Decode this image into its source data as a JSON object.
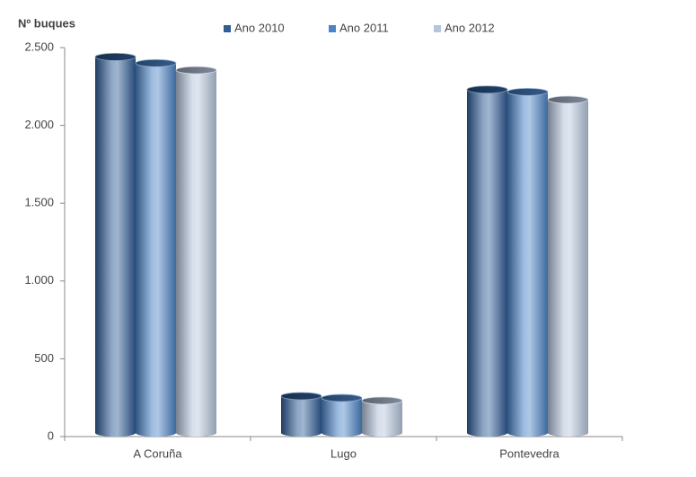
{
  "chart_data": {
    "type": "bar",
    "y_axis_title": "Nº buques",
    "categories": [
      "A Coruña",
      "Lugo",
      "Pontevedra"
    ],
    "series": [
      {
        "name": "Ano 2010",
        "color": "#2f5d96",
        "values": [
          2440,
          260,
          2230
        ]
      },
      {
        "name": "Ano 2011",
        "color": "#4b83c6",
        "values": [
          2400,
          248,
          2215
        ]
      },
      {
        "name": "Ano 2012",
        "color": "#b6c5dc",
        "values": [
          2355,
          231,
          2165
        ]
      }
    ],
    "ylim": [
      0,
      2500
    ],
    "yticks": [
      0,
      500,
      {
        "value": 1000,
        "label": "1.000"
      },
      {
        "value": 1500,
        "label": "1.500"
      },
      {
        "value": 2000,
        "label": "2.000"
      },
      {
        "value": 2500,
        "label": "2.500"
      }
    ],
    "legend": "top"
  }
}
